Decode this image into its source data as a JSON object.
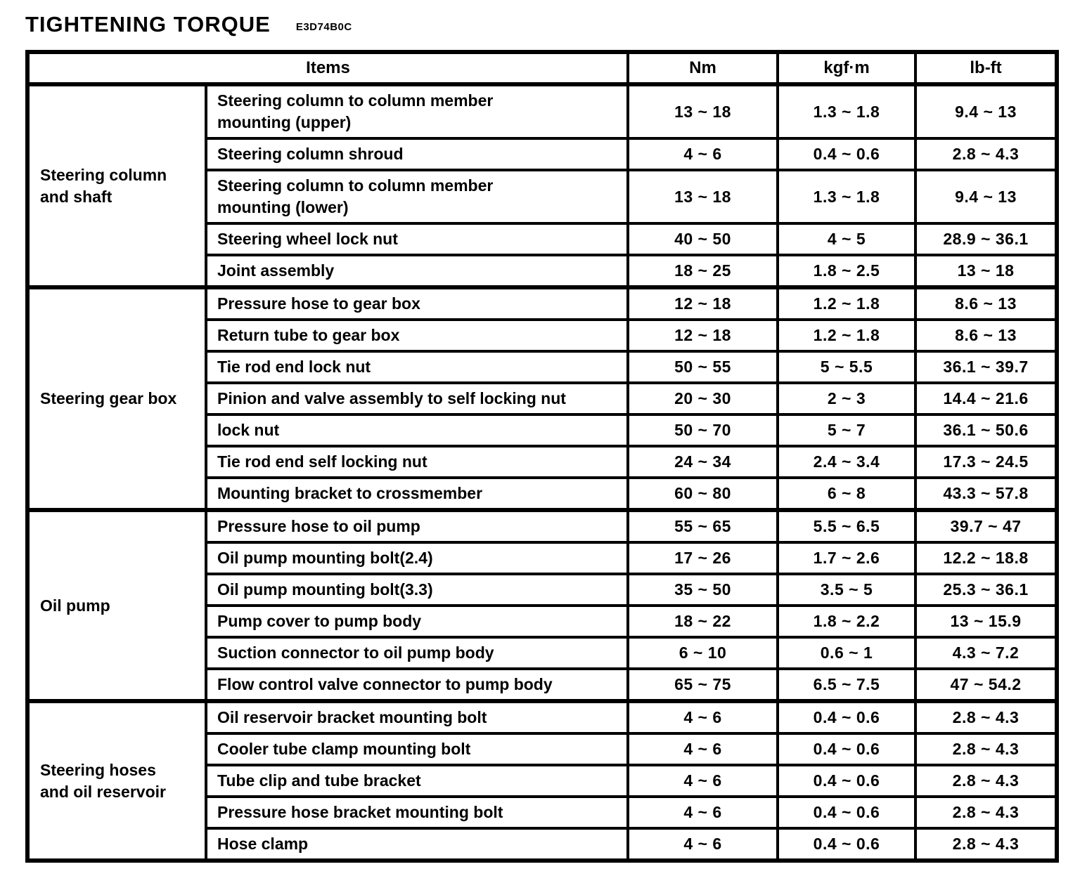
{
  "page": {
    "title": "TIGHTENING TORQUE",
    "code": "E3D74B0C"
  },
  "table": {
    "headers": {
      "items": "Items",
      "nm": "Nm",
      "kgfm": "kgf·m",
      "lbft": "lb-ft"
    },
    "groups": [
      {
        "category": "Steering column\nand shaft",
        "rows": [
          {
            "item": "Steering column to column member\nmounting (upper)",
            "nm": "13 ~ 18",
            "kgfm": "1.3 ~ 1.8",
            "lbft": "9.4 ~ 13"
          },
          {
            "item": "Steering column shroud",
            "nm": "4 ~ 6",
            "kgfm": "0.4 ~ 0.6",
            "lbft": "2.8 ~ 4.3"
          },
          {
            "item": "Steering column to column member\nmounting (lower)",
            "nm": "13 ~ 18",
            "kgfm": "1.3 ~ 1.8",
            "lbft": "9.4 ~ 13"
          },
          {
            "item": "Steering wheel lock nut",
            "nm": "40 ~ 50",
            "kgfm": "4 ~ 5",
            "lbft": "28.9 ~ 36.1"
          },
          {
            "item": "Joint assembly",
            "nm": "18 ~ 25",
            "kgfm": "1.8 ~ 2.5",
            "lbft": "13 ~ 18"
          }
        ]
      },
      {
        "category": "Steering gear box",
        "rows": [
          {
            "item": "Pressure hose to gear box",
            "nm": "12 ~ 18",
            "kgfm": "1.2 ~ 1.8",
            "lbft": "8.6 ~ 13"
          },
          {
            "item": "Return tube to gear box",
            "nm": "12 ~ 18",
            "kgfm": "1.2 ~ 1.8",
            "lbft": "8.6 ~ 13"
          },
          {
            "item": "Tie rod end lock nut",
            "nm": "50 ~ 55",
            "kgfm": "5 ~ 5.5",
            "lbft": "36.1 ~ 39.7"
          },
          {
            "item": "Pinion and valve assembly to self locking nut",
            "nm": "20 ~ 30",
            "kgfm": "2 ~ 3",
            "lbft": "14.4 ~ 21.6"
          },
          {
            "item": "lock nut",
            "nm": "50 ~ 70",
            "kgfm": "5 ~ 7",
            "lbft": "36.1 ~ 50.6"
          },
          {
            "item": "Tie rod end self locking nut",
            "nm": "24 ~ 34",
            "kgfm": "2.4 ~ 3.4",
            "lbft": "17.3 ~ 24.5"
          },
          {
            "item": "Mounting bracket to crossmember",
            "nm": "60 ~ 80",
            "kgfm": "6 ~ 8",
            "lbft": "43.3 ~ 57.8"
          }
        ]
      },
      {
        "category": "Oil pump",
        "rows": [
          {
            "item": "Pressure hose to oil pump",
            "nm": "55 ~ 65",
            "kgfm": "5.5 ~ 6.5",
            "lbft": "39.7 ~ 47"
          },
          {
            "item": "Oil pump mounting bolt(2.4)",
            "nm": "17 ~ 26",
            "kgfm": "1.7 ~ 2.6",
            "lbft": "12.2 ~ 18.8"
          },
          {
            "item": "Oil pump mounting bolt(3.3)",
            "nm": "35 ~ 50",
            "kgfm": "3.5 ~ 5",
            "lbft": "25.3 ~ 36.1"
          },
          {
            "item": "Pump cover to pump body",
            "nm": "18 ~ 22",
            "kgfm": "1.8 ~ 2.2",
            "lbft": "13 ~ 15.9"
          },
          {
            "item": "Suction connector to oil pump body",
            "nm": "6 ~ 10",
            "kgfm": "0.6 ~ 1",
            "lbft": "4.3 ~ 7.2"
          },
          {
            "item": "Flow control valve connector to pump body",
            "nm": "65 ~ 75",
            "kgfm": "6.5 ~ 7.5",
            "lbft": "47 ~ 54.2"
          }
        ]
      },
      {
        "category": "Steering hoses\nand oil reservoir",
        "rows": [
          {
            "item": "Oil reservoir bracket mounting bolt",
            "nm": "4 ~ 6",
            "kgfm": "0.4 ~ 0.6",
            "lbft": "2.8 ~ 4.3"
          },
          {
            "item": "Cooler tube clamp mounting bolt",
            "nm": "4 ~ 6",
            "kgfm": "0.4 ~ 0.6",
            "lbft": "2.8 ~ 4.3"
          },
          {
            "item": "Tube clip and tube bracket",
            "nm": "4 ~ 6",
            "kgfm": "0.4 ~ 0.6",
            "lbft": "2.8 ~ 4.3"
          },
          {
            "item": "Pressure hose bracket mounting bolt",
            "nm": "4 ~ 6",
            "kgfm": "0.4 ~ 0.6",
            "lbft": "2.8 ~ 4.3"
          },
          {
            "item": "Hose clamp",
            "nm": "4 ~ 6",
            "kgfm": "0.4 ~ 0.6",
            "lbft": "2.8 ~ 4.3"
          }
        ]
      }
    ]
  }
}
